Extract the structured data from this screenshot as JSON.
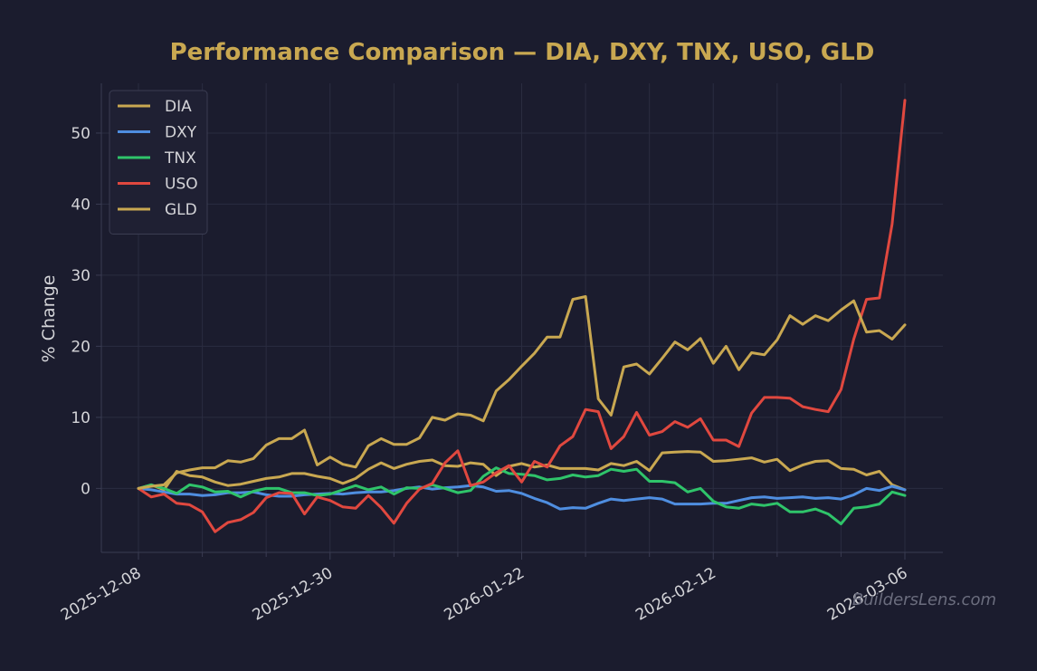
{
  "colors": {
    "background": "#1b1c2e",
    "title": "#c9a851",
    "text": "#d4d4d8",
    "grid": "#2a2c40",
    "axis": "#3a3c52",
    "legend_bg": "#1f2033",
    "legend_border": "#3b3d52",
    "watermark": "#6b6d7e"
  },
  "watermark": "BuildersLens.com",
  "chart_data": {
    "type": "line",
    "title": "Performance Comparison — DIA, DXY, TNX, USO, GLD",
    "xlabel": "",
    "ylabel": "% Change",
    "ylim": [
      -9,
      57
    ],
    "yticks": [
      0,
      10,
      20,
      30,
      40,
      50
    ],
    "x_tick_labels": [
      "2025-12-08",
      "2025-12-30",
      "2026-01-22",
      "2026-02-12",
      "2026-03-06"
    ],
    "x_tick_index": [
      0,
      15,
      30,
      45,
      60
    ],
    "x_minor_tick_index": [
      5,
      10,
      20,
      25,
      35,
      40,
      50,
      55
    ],
    "grid": true,
    "legend_position": "top-left",
    "series": [
      {
        "name": "DIA",
        "color": "#c9a851",
        "values": [
          0,
          0.5,
          -0.2,
          2.4,
          1.8,
          1.6,
          0.9,
          0.4,
          0.6,
          1,
          1.4,
          1.6,
          2.1,
          2.1,
          1.7,
          1.4,
          0.7,
          1.4,
          2.7,
          3.6,
          2.8,
          3.4,
          3.8,
          4,
          3.2,
          3.1,
          3.6,
          3.4,
          1.8,
          3.1,
          3.5,
          3,
          3.3,
          2.8,
          2.8,
          2.8,
          2.6,
          3.5,
          3.2,
          3.8,
          2.5,
          5,
          5.1,
          5.2,
          5.1,
          3.8,
          3.9,
          4.1,
          4.3,
          3.7,
          4.1,
          2.5,
          3.3,
          3.8,
          3.9,
          2.8,
          2.7,
          1.9,
          2.4,
          0.5,
          -0.2
        ]
      },
      {
        "name": "DXY",
        "color": "#4f8ee0",
        "values": [
          0,
          -0.2,
          -0.5,
          -0.8,
          -0.8,
          -1,
          -0.9,
          -0.6,
          -0.6,
          -0.5,
          -0.9,
          -1.1,
          -1.1,
          -0.9,
          -0.8,
          -0.7,
          -0.8,
          -0.6,
          -0.5,
          -0.5,
          -0.3,
          0,
          0.2,
          -0.1,
          0.1,
          0.2,
          0.4,
          0.2,
          -0.4,
          -0.3,
          -0.7,
          -1.4,
          -2,
          -2.9,
          -2.7,
          -2.8,
          -2.1,
          -1.5,
          -1.7,
          -1.5,
          -1.3,
          -1.5,
          -2.2,
          -2.2,
          -2.2,
          -2.1,
          -2.1,
          -1.7,
          -1.3,
          -1.2,
          -1.4,
          -1.3,
          -1.2,
          -1.4,
          -1.3,
          -1.5,
          -0.9,
          0,
          -0.3,
          0.3,
          -0.2
        ]
      },
      {
        "name": "TNX",
        "color": "#2fc46a",
        "values": [
          0,
          0.5,
          0,
          -0.7,
          0.5,
          0.2,
          -0.5,
          -0.4,
          -1.2,
          -0.4,
          0,
          0,
          -0.6,
          -0.6,
          -1,
          -0.8,
          -0.2,
          0.4,
          -0.2,
          0.2,
          -0.8,
          0.1,
          0,
          0.5,
          0,
          -0.6,
          -0.3,
          1.7,
          2.9,
          2.1,
          2,
          1.8,
          1.2,
          1.4,
          1.9,
          1.6,
          1.8,
          2.7,
          2.4,
          2.7,
          1,
          1,
          0.8,
          -0.5,
          0,
          -1.8,
          -2.6,
          -2.8,
          -2.2,
          -2.4,
          -2.1,
          -3.3,
          -3.3,
          -2.9,
          -3.6,
          -5,
          -2.8,
          -2.6,
          -2.2,
          -0.5,
          -1
        ]
      },
      {
        "name": "USO",
        "color": "#e0483f",
        "values": [
          0,
          -1.2,
          -0.8,
          -2.1,
          -2.3,
          -3.3,
          -6.1,
          -4.8,
          -4.4,
          -3.4,
          -1.3,
          -0.6,
          -0.7,
          -3.6,
          -1.2,
          -1.7,
          -2.6,
          -2.8,
          -1,
          -2.7,
          -4.9,
          -2.1,
          -0.1,
          0.7,
          3.6,
          5.3,
          0.4,
          0.9,
          2.2,
          3.2,
          0.9,
          3.8,
          3,
          6,
          7.3,
          11.1,
          10.8,
          5.6,
          7.3,
          10.7,
          7.5,
          8,
          9.4,
          8.6,
          9.8,
          6.8,
          6.8,
          5.9,
          10.6,
          12.8,
          12.8,
          12.7,
          11.5,
          11.1,
          10.8,
          13.9,
          21,
          26.6,
          26.8,
          37.2,
          54.6
        ]
      },
      {
        "name": "GLD",
        "color": "#c9a851",
        "values": [
          0,
          0.3,
          0.5,
          2.2,
          2.6,
          2.9,
          2.9,
          3.9,
          3.7,
          4.2,
          6.1,
          7,
          7,
          8.2,
          3.3,
          4.4,
          3.4,
          3,
          6,
          7,
          6.2,
          6.2,
          7.1,
          10,
          9.6,
          10.5,
          10.3,
          9.5,
          13.7,
          15.3,
          17.2,
          19,
          21.3,
          21.3,
          26.6,
          27,
          12.6,
          10.3,
          17.1,
          17.5,
          16.1,
          18.3,
          20.6,
          19.5,
          21.1,
          17.6,
          20,
          16.7,
          19.1,
          18.8,
          20.9,
          24.3,
          23.1,
          24.3,
          23.6,
          25.1,
          26.4,
          22,
          22.2,
          21,
          23
        ]
      }
    ]
  }
}
